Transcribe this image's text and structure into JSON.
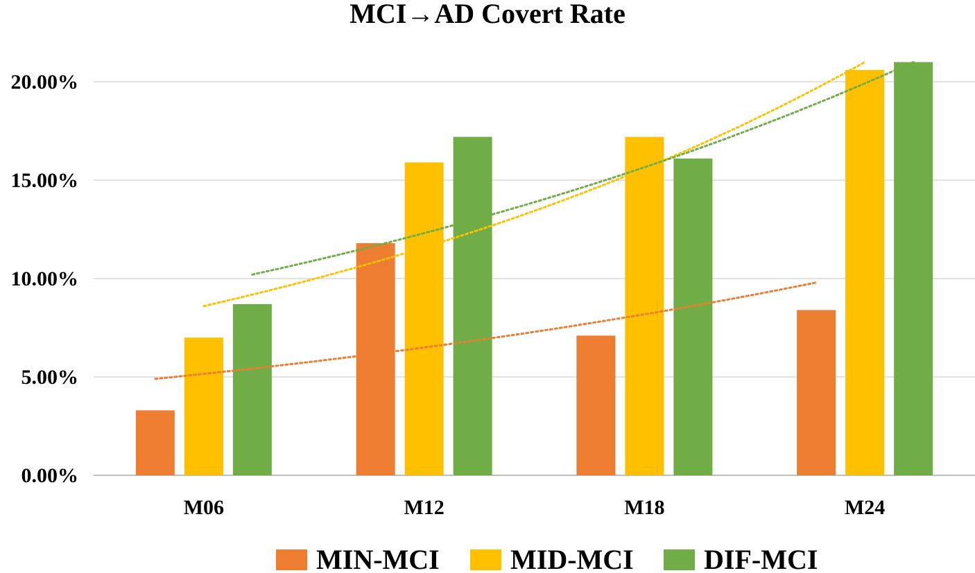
{
  "chart_data": {
    "type": "bar",
    "title": "MCI→AD Covert Rate",
    "xlabel": "",
    "ylabel": "",
    "categories": [
      "M06",
      "M12",
      "M18",
      "M24"
    ],
    "ylim": [
      0,
      0.2
    ],
    "yticks": [
      0,
      0.05,
      0.1,
      0.15,
      0.2
    ],
    "ytick_labels": [
      "0.00%",
      "5.00%",
      "10.00%",
      "15.00%",
      "20.00%"
    ],
    "grid": true,
    "legend_position": "bottom",
    "series": [
      {
        "name": "MIN-MCI",
        "color": "#ED7D31",
        "values": [
          0.033,
          0.118,
          0.071,
          0.084
        ],
        "trendline": {
          "type": "exponential",
          "start": 0.049,
          "end": 0.098,
          "style": "dotted"
        }
      },
      {
        "name": "MID-MCI",
        "color": "#FFC000",
        "values": [
          0.07,
          0.159,
          0.172,
          0.206
        ],
        "trendline": {
          "type": "exponential",
          "start": 0.086,
          "end": 0.21,
          "style": "dotted"
        }
      },
      {
        "name": "DIF-MCI",
        "color": "#70AD47",
        "values": [
          0.087,
          0.172,
          0.161,
          0.21
        ],
        "trendline": {
          "type": "exponential",
          "start": 0.102,
          "end": 0.21,
          "style": "dotted"
        }
      }
    ]
  }
}
